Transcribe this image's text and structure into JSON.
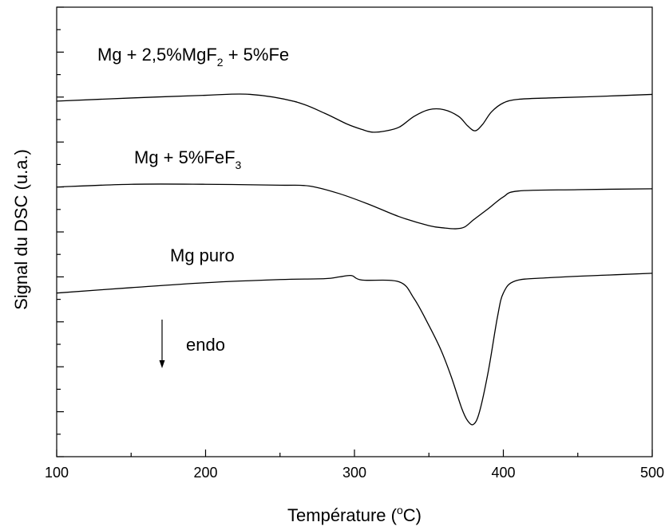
{
  "chart_data": {
    "type": "line",
    "xlabel_main": "Température (",
    "xlabel_sup": "o",
    "xlabel_end": "C)",
    "ylabel": "Signal du DSC (u.a.)",
    "xlim": [
      100,
      500
    ],
    "ylim": [
      0,
      100
    ],
    "x_ticks": [
      "100",
      "200",
      "300",
      "400",
      "500"
    ],
    "y_tick_labels_shown": false,
    "grid": false,
    "legend": "none",
    "series": [
      {
        "name": "Mg + 2,5%MgF₂ + 5%Fe",
        "label_parts": [
          "Mg + 2,5%MgF",
          "2",
          " + 5%Fe"
        ],
        "x": [
          100,
          150,
          200,
          230,
          260,
          280,
          295,
          305,
          312,
          320,
          330,
          340,
          350,
          360,
          370,
          376,
          381,
          386,
          392,
          400,
          410,
          430,
          460,
          500
        ],
        "y": [
          79.1,
          79.8,
          80.4,
          80.6,
          79.0,
          76.4,
          74.0,
          72.8,
          72.2,
          72.4,
          73.3,
          75.7,
          77.2,
          77.2,
          75.7,
          73.6,
          72.5,
          73.9,
          76.7,
          78.7,
          79.5,
          79.8,
          80.1,
          80.6
        ]
      },
      {
        "name": "Mg + 5%FeF₃",
        "label_parts": [
          "Mg + 5%FeF",
          "3",
          ""
        ],
        "x": [
          100,
          150,
          200,
          250,
          270,
          290,
          310,
          330,
          350,
          360,
          368,
          374,
          380,
          390,
          400,
          410,
          450,
          500
        ],
        "y": [
          60.0,
          60.6,
          60.6,
          60.4,
          60.2,
          58.5,
          56.1,
          53.4,
          51.4,
          50.9,
          50.7,
          51.1,
          52.7,
          55.2,
          57.8,
          59.1,
          59.4,
          59.6
        ]
      },
      {
        "name": "Mg puro",
        "label_parts": [
          "Mg puro",
          "",
          ""
        ],
        "x": [
          100,
          150,
          200,
          250,
          280,
          290,
          298,
          305,
          330,
          340,
          350,
          358,
          365,
          372,
          376,
          380,
          384,
          390,
          396,
          400,
          408,
          430,
          470,
          500
        ],
        "y": [
          36.4,
          37.6,
          38.7,
          39.4,
          39.6,
          40.0,
          40.3,
          39.3,
          38.9,
          35.2,
          29.2,
          23.8,
          17.8,
          10.8,
          8.0,
          7.2,
          10.0,
          19.2,
          31.0,
          36.4,
          39.1,
          39.8,
          40.4,
          40.8
        ]
      }
    ],
    "annotations": [
      {
        "text": "endo",
        "arrow": "down"
      }
    ]
  }
}
